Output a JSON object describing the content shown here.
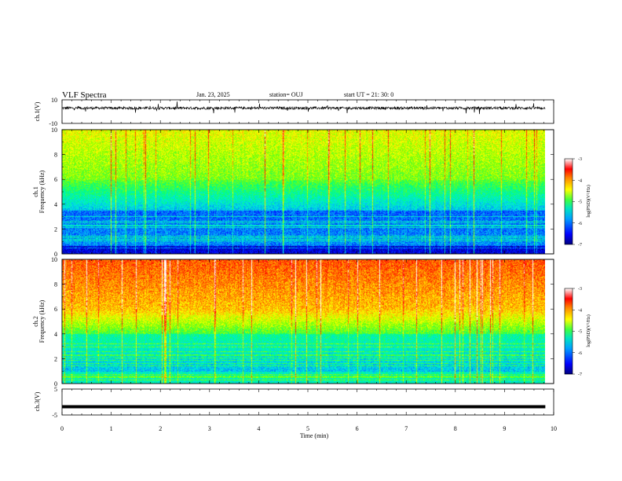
{
  "header": {
    "title": "VLF Spectra",
    "date": "Jan. 23, 2025",
    "station": "station= OUJ",
    "start": "start  UT  =   21: 30: 0"
  },
  "colors": {
    "spectrogram_ramp": [
      "#00007f",
      "#0000ff",
      "#0080ff",
      "#00e5e5",
      "#00ff80",
      "#80ff00",
      "#ffff00",
      "#ff8000",
      "#ff0000",
      "#ffffff"
    ]
  },
  "chart_data": [
    {
      "type": "line",
      "panel": "ch1-waveform",
      "ylabel": "ch.1(V)",
      "yticks": [
        "10",
        "-10"
      ],
      "ylim": [
        -10,
        10
      ],
      "xlim": [
        0,
        10
      ],
      "x_data_end": 9.83,
      "description_level": "noisy waveform around +3 V with spikes"
    },
    {
      "type": "heatmap",
      "panel": "ch1-spectrogram",
      "ylabel_channel": "ch.1",
      "ylabel": "Frequency (kHz)",
      "yticks": [
        "0",
        "2",
        "4",
        "6",
        "8",
        "10"
      ],
      "ylim": [
        0,
        10
      ],
      "xlim": [
        0,
        10
      ],
      "x_data_end": 9.83,
      "colorbar": {
        "label": "log(PSD)(V²/Hz)",
        "ticks": [
          "-3",
          "-4",
          "-5",
          "-6",
          "-7"
        ],
        "range": [
          -7,
          -3
        ]
      }
    },
    {
      "type": "heatmap",
      "panel": "ch2-spectrogram",
      "ylabel_channel": "ch.2",
      "ylabel": "Frequency (kHz)",
      "yticks": [
        "0",
        "2",
        "4",
        "6",
        "8",
        "10"
      ],
      "ylim": [
        0,
        10
      ],
      "xlim": [
        0,
        10
      ],
      "x_data_end": 9.83,
      "colorbar": {
        "label": "log(PSD)(V²/Hz)",
        "ticks": [
          "-3",
          "-4",
          "-5",
          "-6",
          "-7"
        ],
        "range": [
          -7,
          -3
        ]
      }
    },
    {
      "type": "line",
      "panel": "ch3-waveform",
      "ylabel": "ch.3(V)",
      "yticks": [
        "5",
        "0",
        "-5"
      ],
      "ylim": [
        -5,
        5
      ],
      "xlim": [
        0,
        10
      ],
      "x_data_end": 9.83,
      "level": -1.8
    }
  ],
  "xaxis": {
    "label": "Time (min)",
    "ticks": [
      "0",
      "1",
      "2",
      "3",
      "4",
      "5",
      "6",
      "7",
      "8",
      "9",
      "10"
    ]
  }
}
